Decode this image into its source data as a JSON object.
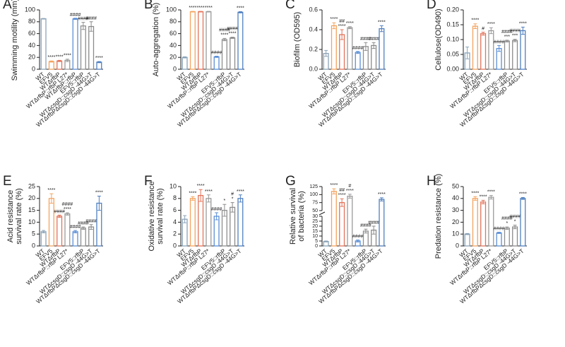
{
  "chart_data": [
    {
      "type": "bar",
      "panel": "A",
      "ylabel": [
        "Swimming motility (mm)"
      ],
      "categories": [
        "WT",
        "EFV5",
        "WTΔrfbP",
        "WTΔrfbP::rfbP L27*",
        "WTΔrfbP::rfbP",
        "EFV5::rfbP",
        "WTΔcsgD::csgD -44G>T",
        "WTΔrfbPΔcsgD::csgD -44G>T"
      ],
      "values": [
        85,
        13,
        14,
        15,
        85,
        73,
        72,
        12
      ],
      "errors": [
        0.5,
        1,
        1,
        2,
        1,
        6,
        8,
        1
      ],
      "colors": [
        "#8aa3b8",
        "#f4a35e",
        "#e2735a",
        "#9a9a9a",
        "#5b8fd6",
        "#8f8f8f",
        "#8a8a8a",
        "#4f7fbf"
      ],
      "annotations": [
        null,
        [
          "****"
        ],
        [
          "****"
        ],
        [
          "****"
        ],
        [
          "####"
        ],
        [
          "####"
        ],
        [
          "####"
        ],
        [
          "****"
        ]
      ],
      "ylim": [
        0,
        100
      ],
      "yticks": [
        0,
        20,
        40,
        60,
        80,
        100
      ]
    },
    {
      "type": "bar",
      "panel": "B",
      "ylabel": [
        "Auto-aggregation (%)"
      ],
      "categories": [
        "WT",
        "EFV5",
        "WTΔrfbP",
        "WTΔrfbP::rfbP L27*",
        null,
        "EFV5::rfbP",
        "WTΔcsgD::csgD -44G>T",
        "WTΔrfbPΔcsgD::csgD -44G>T"
      ],
      "values": [
        20,
        97,
        97,
        97,
        21,
        50,
        53,
        96
      ],
      "errors": [
        1,
        0.5,
        0.5,
        0.5,
        1,
        2,
        1,
        1
      ],
      "colors": [
        "#8aa3b8",
        "#f4a35e",
        "#e2735a",
        "#9a9a9a",
        "#5b8fd6",
        "#8f8f8f",
        "#8a8a8a",
        "#4f7fbf"
      ],
      "annotations": [
        null,
        [
          "****"
        ],
        [
          "****"
        ],
        [
          "****"
        ],
        [
          "####"
        ],
        [
          "####",
          "****"
        ],
        [
          "####",
          "****"
        ],
        [
          "****"
        ]
      ],
      "ylim": [
        0,
        100
      ],
      "yticks": [
        0,
        20,
        40,
        60,
        80,
        100
      ]
    },
    {
      "type": "bar",
      "panel": "C",
      "ylabel": [
        "Biofilm (OD595)"
      ],
      "categories": [
        "WT",
        "EFV5",
        "WTΔrfbP",
        "WTΔrfbP::rfbP L27*",
        null,
        "EFV5::rfbP",
        "WTΔcsgD::csgD -44G>T",
        "WTΔrfbPΔcsgD::csgD -44G>T"
      ],
      "values": [
        0.16,
        0.44,
        0.35,
        0.42,
        0.17,
        0.23,
        0.24,
        0.41
      ],
      "errors": [
        0.03,
        0.03,
        0.05,
        0.01,
        0.01,
        0.04,
        0.03,
        0.03
      ],
      "colors": [
        "#8aa3b8",
        "#f4a35e",
        "#e2735a",
        "#9a9a9a",
        "#5b8fd6",
        "#8f8f8f",
        "#8a8a8a",
        "#4f7fbf"
      ],
      "annotations": [
        null,
        [
          "****"
        ],
        [
          "##",
          "****"
        ],
        [
          "****"
        ],
        [
          "####"
        ],
        [
          "####"
        ],
        [
          "####"
        ],
        [
          "****"
        ]
      ],
      "ylim": [
        0,
        0.6
      ],
      "yticks": [
        {
          "value": 0,
          "label": "0.0"
        },
        0.2,
        0.4,
        0.6
      ]
    },
    {
      "type": "bar",
      "panel": "D",
      "ylabel": [
        "Cellulose(OD490)"
      ],
      "categories": [
        "WT",
        "EFV5",
        "WTΔrfbP",
        "WTΔrfbP::rfbP L27*",
        null,
        "EFV5::rfbP",
        "WTΔcsgD::csgD -44G>T",
        "WTΔrfbPΔcsgD::csgD -44G>T"
      ],
      "values": [
        0.055,
        0.145,
        0.12,
        0.13,
        0.07,
        0.095,
        0.097,
        0.13
      ],
      "errors": [
        0.02,
        0.008,
        0.005,
        0.01,
        0.01,
        0.003,
        0.004,
        0.012
      ],
      "colors": [
        "#8aa3b8",
        "#f4a35e",
        "#e2735a",
        "#9a9a9a",
        "#5b8fd6",
        "#8f8f8f",
        "#8a8a8a",
        "#4f7fbf"
      ],
      "annotations": [
        null,
        [
          "****"
        ],
        [
          "#"
        ],
        [
          "****"
        ],
        [
          "####"
        ],
        [
          "####",
          "***"
        ],
        [
          "####",
          "***"
        ],
        [
          "****"
        ]
      ],
      "ylim": [
        0,
        0.2
      ],
      "yticks": [
        {
          "value": 0,
          "label": "0.00"
        },
        0.05,
        {
          "value": 0.1,
          "label": "0.10"
        },
        0.15,
        {
          "value": 0.2,
          "label": "0.20"
        }
      ]
    },
    {
      "type": "bar",
      "panel": "E",
      "ylabel": [
        "Acid resistance",
        "survival rate (%)"
      ],
      "categories": [
        "WT",
        "EFV5",
        "WTΔrfbP",
        "WTΔrfbP::rfbP L27*",
        null,
        "EFV5::rfbP",
        "WTΔcsgD::csgD -44G>T",
        "WTΔrfbPΔcsgD::csgD -44G>T"
      ],
      "values": [
        6,
        20,
        12.5,
        13.5,
        6,
        7.5,
        8,
        18
      ],
      "errors": [
        0.5,
        2,
        0.5,
        0.5,
        0.5,
        0.5,
        1,
        3
      ],
      "colors": [
        "#8aa3b8",
        "#f4a35e",
        "#e2735a",
        "#9a9a9a",
        "#5b8fd6",
        "#8f8f8f",
        "#8a8a8a",
        "#4f7fbf"
      ],
      "annotations": [
        null,
        [
          "****"
        ],
        [
          "####"
        ],
        [
          "####",
          "****"
        ],
        [
          "####"
        ],
        [
          "####"
        ],
        [
          "####"
        ],
        [
          "****"
        ]
      ],
      "ylim": [
        0,
        25
      ],
      "yticks": [
        0,
        5,
        10,
        15,
        20,
        25
      ]
    },
    {
      "type": "bar",
      "panel": "F",
      "ylabel": [
        "Oxidative resistance",
        "survival rate (%)"
      ],
      "categories": [
        "WT",
        "EFV5",
        "WTΔrfbP",
        "WTΔrfbP::rfbP L27*",
        null,
        "EFV5::rfbP",
        "WTΔcsgD::csgD -44G>T",
        "WTΔrfbPΔcsgD::csgD -44G>T"
      ],
      "values": [
        4.5,
        8,
        8.5,
        8,
        5,
        6,
        6.5,
        8
      ],
      "errors": [
        0.6,
        0.3,
        1,
        0.6,
        0.6,
        1,
        0.8,
        0.6
      ],
      "colors": [
        "#8aa3b8",
        "#f4a35e",
        "#e2735a",
        "#9a9a9a",
        "#5b8fd6",
        "#8f8f8f",
        "#8a8a8a",
        "#4f7fbf"
      ],
      "annotations": [
        null,
        [
          "****"
        ],
        [
          "****"
        ],
        [
          "****"
        ],
        [
          "####"
        ],
        [
          "*"
        ],
        [
          "#",
          "*"
        ],
        [
          "****"
        ]
      ],
      "ylim": [
        0,
        10
      ],
      "yticks": [
        0,
        2,
        4,
        6,
        8,
        10
      ]
    },
    {
      "type": "bar",
      "panel": "G",
      "ylabel": [
        "Relative survival",
        "of bacteria (%)"
      ],
      "categories": [
        "WT",
        "EFV5",
        "WTΔrfbP",
        "WTΔrfbP::rfbP L27*",
        null,
        "EFV5::rfbP",
        "WTΔcsgD::csgD -44G>T",
        "WTΔrfbPΔcsgD::csgD -44G>T"
      ],
      "values": [
        4.5,
        110,
        75,
        95,
        5,
        15,
        16,
        85
      ],
      "errors": [
        0.5,
        8,
        12,
        6,
        1,
        2,
        4,
        5
      ],
      "colors": [
        "#8aa3b8",
        "#f4a35e",
        "#e2735a",
        "#9a9a9a",
        "#5b8fd6",
        "#8f8f8f",
        "#8a8a8a",
        "#4f7fbf"
      ],
      "annotations": [
        null,
        [
          "****"
        ],
        [
          "##",
          "****"
        ],
        [
          "#",
          "****"
        ],
        [
          "####"
        ],
        [
          "####"
        ],
        [
          "####"
        ],
        [
          "****"
        ]
      ],
      "ylim": [
        0,
        125
      ],
      "ybreak": [
        30,
        50
      ],
      "yticks": [
        0,
        5,
        10,
        15,
        20,
        25,
        30,
        50,
        75,
        100,
        125
      ]
    },
    {
      "type": "bar",
      "panel": "H",
      "ylabel": [
        "Predation resistance (%)"
      ],
      "categories": [
        "WT",
        "EFV5",
        "WTΔrfbP",
        "WTΔrfbP::rfbP L27*",
        null,
        "EFV5::rfbP",
        "WTΔcsgD::csgD -44G>T",
        "WTΔrfbPΔcsgD::csgD -44G>T"
      ],
      "values": [
        10,
        40,
        37,
        41,
        11,
        15,
        16,
        40
      ],
      "errors": [
        0.5,
        1.5,
        1.5,
        1.5,
        0.5,
        1,
        1.5,
        0.8
      ],
      "colors": [
        "#8aa3b8",
        "#f4a35e",
        "#e2735a",
        "#9a9a9a",
        "#5b8fd6",
        "#8f8f8f",
        "#8a8a8a",
        "#4f7fbf"
      ],
      "annotations": [
        null,
        [
          "****"
        ],
        [
          "****"
        ],
        [
          "****"
        ],
        [
          "####"
        ],
        [
          "####",
          "*"
        ],
        [
          "####",
          "*"
        ],
        [
          "****"
        ]
      ],
      "ylim": [
        0,
        50
      ],
      "yticks": [
        0,
        10,
        20,
        30,
        40,
        50
      ]
    }
  ]
}
